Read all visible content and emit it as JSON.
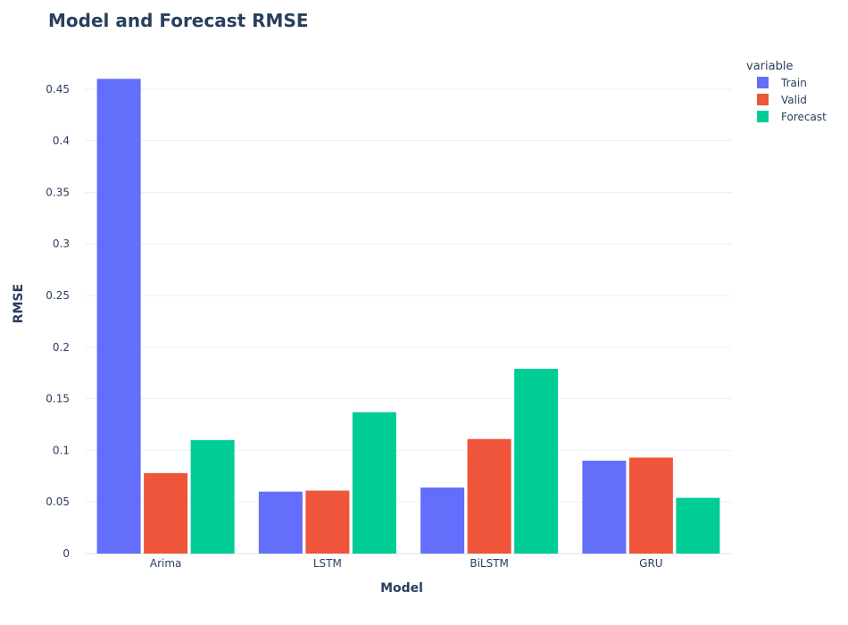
{
  "chart_data": {
    "type": "bar",
    "title": "Model and Forecast RMSE",
    "xlabel": "Model",
    "ylabel": "RMSE",
    "categories": [
      "Arima",
      "LSTM",
      "BiLSTM",
      "GRU"
    ],
    "series": [
      {
        "name": "Train",
        "color": "#636efa",
        "values": [
          0.46,
          0.06,
          0.064,
          0.09
        ]
      },
      {
        "name": "Valid",
        "color": "#ef553b",
        "values": [
          0.078,
          0.061,
          0.111,
          0.093
        ]
      },
      {
        "name": "Forecast",
        "color": "#00cc96",
        "values": [
          0.11,
          0.137,
          0.179,
          0.054
        ]
      }
    ],
    "ylim": [
      0,
      0.4715
    ],
    "yticks": [
      0,
      0.05,
      0.1,
      0.15,
      0.2,
      0.25,
      0.3,
      0.35,
      0.4,
      0.45
    ],
    "ytick_labels": [
      "0",
      "0.05",
      "0.1",
      "0.15",
      "0.2",
      "0.25",
      "0.3",
      "0.35",
      "0.4",
      "0.45"
    ],
    "legend": {
      "title": "variable",
      "position": "top-right"
    },
    "grid": true
  }
}
